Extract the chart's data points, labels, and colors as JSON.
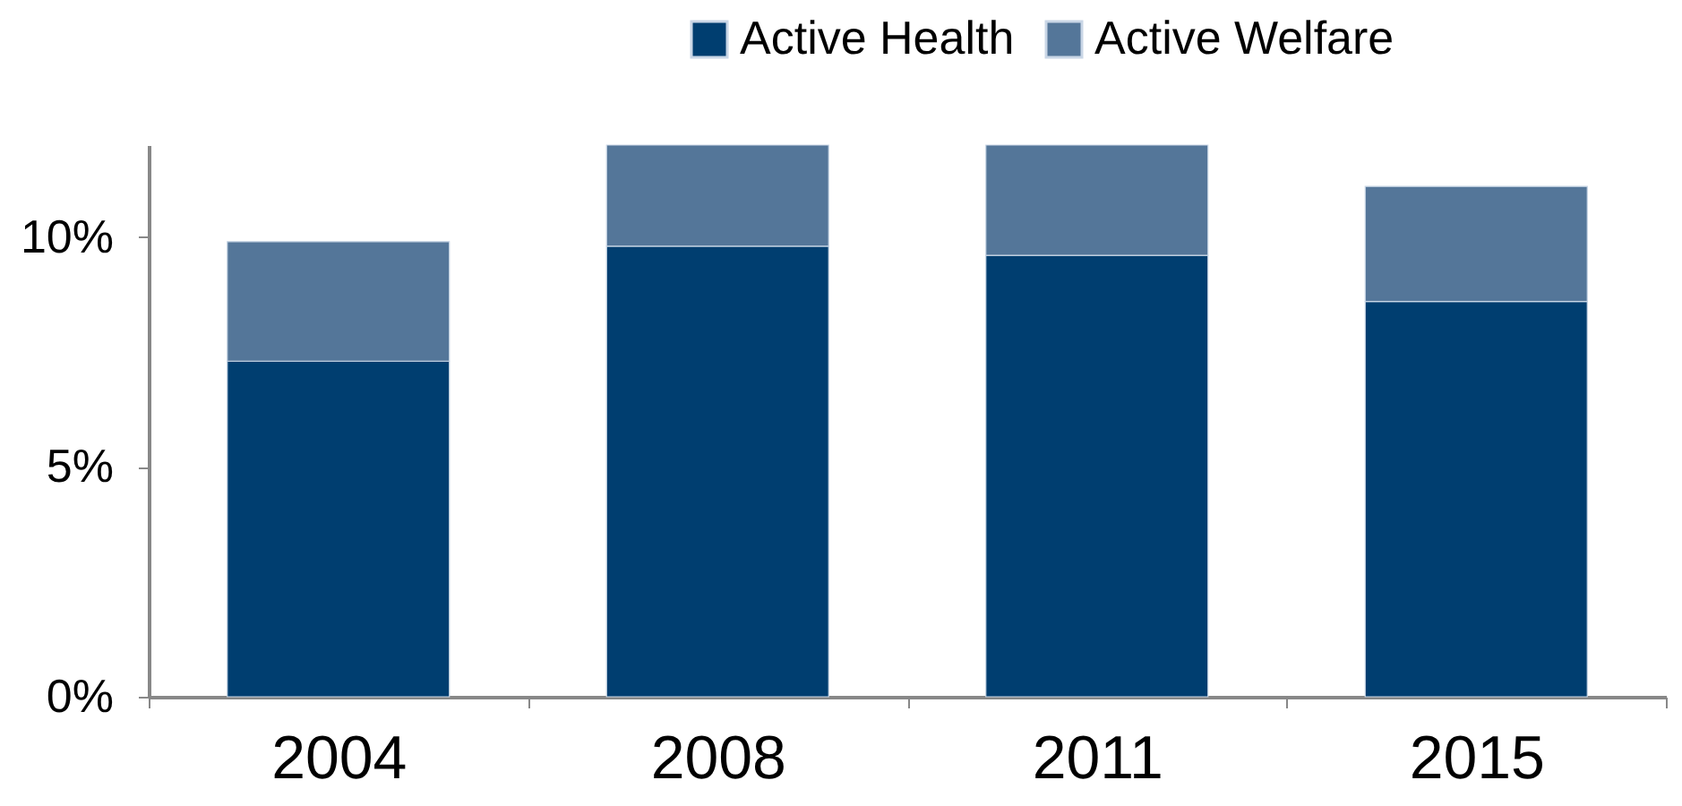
{
  "chart_data": {
    "type": "bar",
    "stacked": true,
    "categories": [
      "2004",
      "2008",
      "2011",
      "2015"
    ],
    "series": [
      {
        "name": "Active Health",
        "color": "#003e70",
        "values": [
          7.3,
          9.8,
          9.6,
          8.6
        ]
      },
      {
        "name": "Active Welfare",
        "color": "#547699",
        "values": [
          2.6,
          2.2,
          2.4,
          2.5
        ]
      }
    ],
    "ylim": [
      0,
      12
    ],
    "yticks": [
      {
        "value": 0,
        "label": "0%"
      },
      {
        "value": 5,
        "label": "5%"
      },
      {
        "value": 10,
        "label": "10%"
      }
    ],
    "grid": false,
    "legend": "top right"
  }
}
